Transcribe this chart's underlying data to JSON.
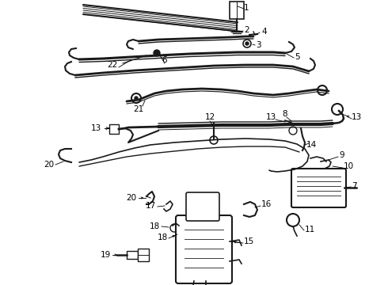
{
  "bg_color": "#ffffff",
  "fig_width": 4.9,
  "fig_height": 3.6,
  "dpi": 100,
  "line_color": "#1a1a1a",
  "label_color": "#000000",
  "font_size": 7.5
}
